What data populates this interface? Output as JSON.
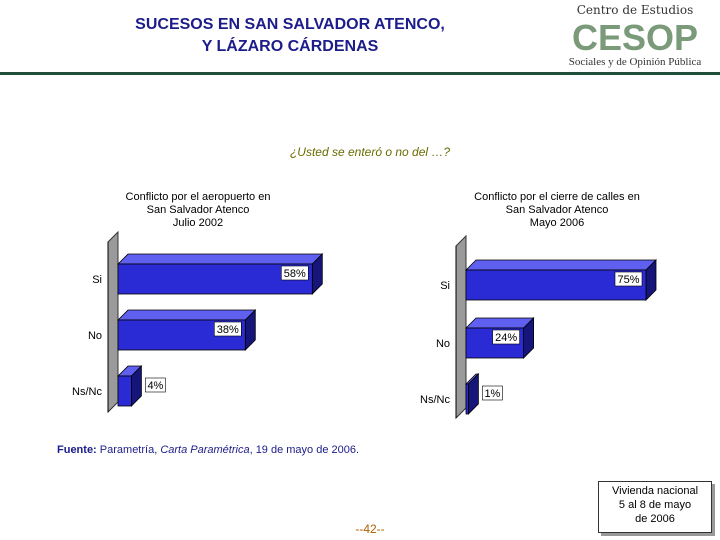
{
  "header": {
    "title_line1": "SUCESOS EN SAN SALVADOR ATENCO,",
    "title_line2": "Y LÁZARO CÁRDENAS",
    "logo_top": "Centro de Estudios",
    "logo_mid": "CESOP",
    "logo_bottom": "Sociales y de Opinión Pública"
  },
  "question": "¿Usted se enteró o no del …?",
  "chart_data": [
    {
      "type": "bar",
      "orientation": "horizontal",
      "title_lines": [
        "Conflicto por el aeropuerto en",
        "San Salvador Atenco",
        "Julio 2002"
      ],
      "categories": [
        "Si",
        "No",
        "Ns/Nc"
      ],
      "values": [
        58,
        38,
        4
      ],
      "value_labels": [
        "58%",
        "38%",
        "4%"
      ],
      "xlim": [
        0,
        100
      ],
      "bar_color": "#2b2bd6",
      "grid": false
    },
    {
      "type": "bar",
      "orientation": "horizontal",
      "title_lines": [
        "Conflicto por el cierre de calles en",
        "San Salvador Atenco",
        "Mayo 2006"
      ],
      "categories": [
        "Si",
        "No",
        "Ns/Nc"
      ],
      "values": [
        75,
        24,
        1
      ],
      "value_labels": [
        "75%",
        "24%",
        "1%"
      ],
      "xlim": [
        0,
        100
      ],
      "bar_color": "#2b2bd6",
      "grid": false
    }
  ],
  "source": {
    "label": "Fuente:",
    "text_pre": " Parametría, ",
    "text_italic": "Carta Paramétrica",
    "text_post": ", 19 de mayo de 2006."
  },
  "page_number": "--42--",
  "note": {
    "line1": "Vivienda nacional",
    "line2": "5 al 8 de mayo",
    "line3": "de 2006"
  }
}
